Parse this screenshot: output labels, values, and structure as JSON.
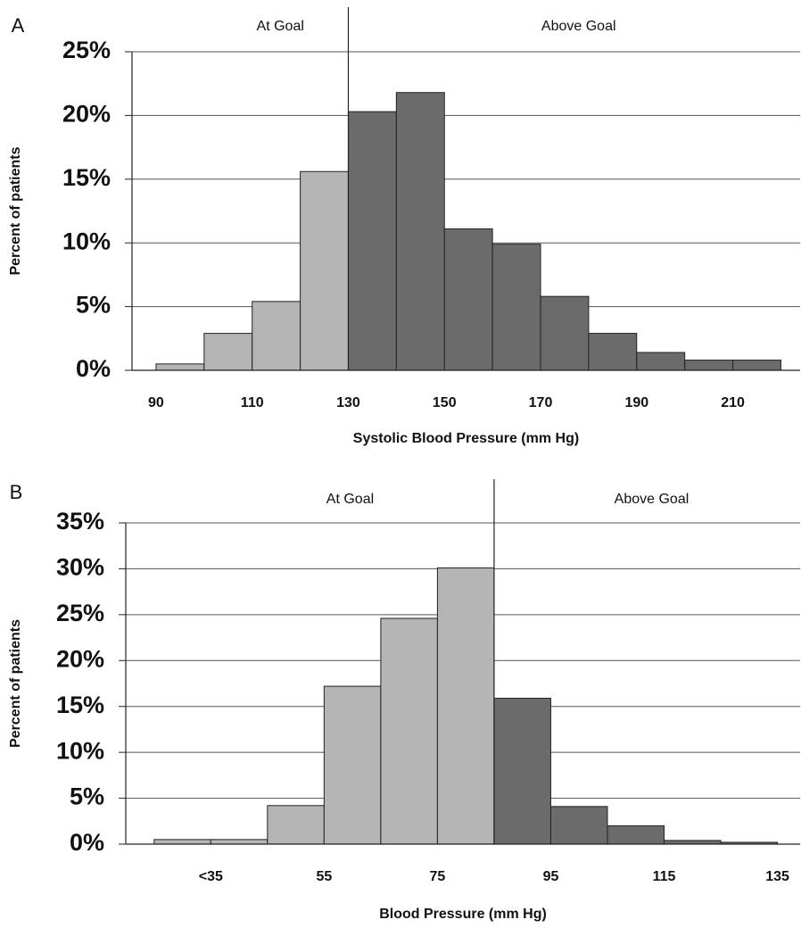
{
  "chart_data": [
    {
      "type": "histogram",
      "panel_label": "A",
      "x_label": "Systolic Blood Pressure (mm Hg)",
      "y_label": "Percent of patients",
      "bins": [
        90,
        100,
        110,
        120,
        130,
        140,
        150,
        160,
        170,
        180,
        190,
        200,
        210,
        220
      ],
      "values": [
        0.5,
        2.9,
        5.4,
        15.6,
        20.3,
        21.8,
        11.1,
        9.9,
        5.8,
        2.9,
        1.4,
        0.8,
        0.8
      ],
      "divider": 130,
      "left_annotation": "At Goal",
      "right_annotation": "Above Goal",
      "at_goal_color": "#b4b4b4",
      "above_goal_color": "#6b6b6b",
      "xlim": [
        85,
        224
      ],
      "xticks": [
        90,
        110,
        130,
        150,
        170,
        190,
        210
      ],
      "ylim": [
        0,
        25
      ],
      "yticks": [
        {
          "value": 0,
          "label": "0%"
        },
        {
          "value": 5,
          "label": "5%"
        },
        {
          "value": 10,
          "label": "10%"
        },
        {
          "value": 15,
          "label": "15%"
        },
        {
          "value": 20,
          "label": "20%"
        },
        {
          "value": 25,
          "label": "25%"
        }
      ],
      "grid": true
    },
    {
      "type": "histogram",
      "panel_label": "B",
      "x_label": "Blood Pressure (mm Hg)",
      "y_label": "Percent of patients",
      "bins": [
        25,
        35,
        45,
        55,
        65,
        75,
        85,
        95,
        105,
        115,
        125,
        135
      ],
      "values": [
        0.5,
        0.5,
        4.2,
        17.2,
        24.6,
        30.1,
        15.9,
        4.1,
        2.0,
        0.4,
        0.2
      ],
      "divider": 85,
      "left_annotation": "At Goal",
      "right_annotation": "Above Goal",
      "at_goal_color": "#b4b4b4",
      "above_goal_color": "#6b6b6b",
      "xlim": [
        20,
        139
      ],
      "xticks": [
        {
          "value": 35,
          "label": "<35"
        },
        55,
        75,
        95,
        115,
        135
      ],
      "ylim": [
        0,
        35
      ],
      "yticks": [
        {
          "value": 0,
          "label": "0%"
        },
        {
          "value": 5,
          "label": "5%"
        },
        {
          "value": 10,
          "label": "10%"
        },
        {
          "value": 15,
          "label": "15%"
        },
        {
          "value": 20,
          "label": "20%"
        },
        {
          "value": 25,
          "label": "25%"
        },
        {
          "value": 30,
          "label": "30%"
        },
        {
          "value": 35,
          "label": "35%"
        }
      ],
      "grid": true
    }
  ]
}
